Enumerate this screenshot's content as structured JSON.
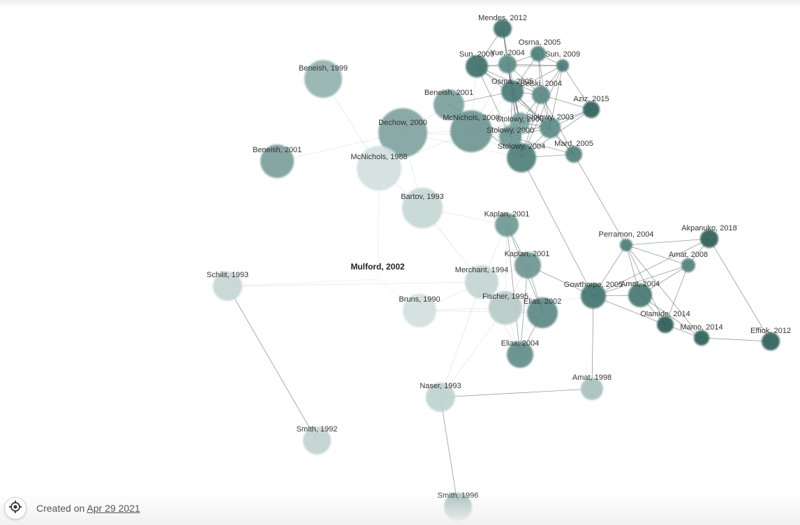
{
  "graph": {
    "origin_label": "Mulford, 2002",
    "nodes": [
      {
        "id": "mendes2012",
        "label": "Mendes, 2012",
        "shade": "#3e6e69"
      },
      {
        "id": "osrna2005",
        "label": "Osrna, 2005",
        "shade": "#4d7d78"
      },
      {
        "id": "sun2009a",
        "label": "Sun, 2009",
        "shade": "#3f706b"
      },
      {
        "id": "yue2004",
        "label": "Yue, 2004",
        "shade": "#5a8a86"
      },
      {
        "id": "sun2009b",
        "label": "Sun, 2009",
        "shade": "#4a7a76"
      },
      {
        "id": "osma2005",
        "label": "Osma, 2005",
        "shade": "#4a7b76"
      },
      {
        "id": "belski2004",
        "label": "Belski, 2004",
        "shade": "#5b8985"
      },
      {
        "id": "aziz2015",
        "label": "Aziz, 2015",
        "shade": "#2f5f5a"
      },
      {
        "id": "beneish2001a",
        "label": "Beneish, 2001",
        "shade": "#79a09c"
      },
      {
        "id": "mcnichols2000",
        "label": "McNichols, 2000",
        "shade": "#6f9692"
      },
      {
        "id": "stolowy2000a",
        "label": "Stolowy, 2000",
        "shade": "#7aa29e"
      },
      {
        "id": "stolowy2003",
        "label": "Stolowy, 2003",
        "shade": "#5b8b86"
      },
      {
        "id": "stolowy2000b",
        "label": "Stolowy, 2000",
        "shade": "#6b9591"
      },
      {
        "id": "stolowy2004",
        "label": "Stolowy, 2004",
        "shade": "#4e7f7a"
      },
      {
        "id": "mard2005",
        "label": "Mard, 2005",
        "shade": "#507f7b"
      },
      {
        "id": "dechow2000",
        "label": "Dechow, 2000",
        "shade": "#80a2a0"
      },
      {
        "id": "beneish1999",
        "label": "Beneish, 1999",
        "shade": "#93b2af"
      },
      {
        "id": "beneish2001b",
        "label": "Beneish, 2001",
        "shade": "#7b9e9b"
      },
      {
        "id": "mcnichols1988",
        "label": "McNichols, 1988",
        "shade": "#d3e0de"
      },
      {
        "id": "bartov1993",
        "label": "Bartov, 1993",
        "shade": "#c6d7d5"
      },
      {
        "id": "kaplan2001a",
        "label": "Kaplan, 2001",
        "shade": "#6f9894"
      },
      {
        "id": "kaplan2001b",
        "label": "Kaplan, 2001",
        "shade": "#6c9591"
      },
      {
        "id": "merchant1994",
        "label": "Merchant, 1994",
        "shade": "#c3d5d3"
      },
      {
        "id": "fischer1995",
        "label": "Fischer, 1995",
        "shade": "#b6cbc8"
      },
      {
        "id": "elias2002",
        "label": "Elias, 2002",
        "shade": "#5b8985"
      },
      {
        "id": "elias2004",
        "label": "Elias, 2004",
        "shade": "#5f8d89"
      },
      {
        "id": "bruns1990",
        "label": "Bruns, 1990",
        "shade": "#d3e0de"
      },
      {
        "id": "schilit1993",
        "label": "Schilit, 1993",
        "shade": "#c5d6d4"
      },
      {
        "id": "naser1993",
        "label": "Naser, 1993",
        "shade": "#bfd2cf"
      },
      {
        "id": "smith1992",
        "label": "Smith, 1992",
        "shade": "#c0d3d0"
      },
      {
        "id": "smith1996",
        "label": "Smith, 1996",
        "shade": "#a3bdba"
      },
      {
        "id": "amat1998",
        "label": "Amat, 1998",
        "shade": "#a8c0bd"
      },
      {
        "id": "perramon2004",
        "label": "Perramon, 2004",
        "shade": "#4e7e7a"
      },
      {
        "id": "akpanuko2018",
        "label": "Akpanuko, 2018",
        "shade": "#2e5d58"
      },
      {
        "id": "amat2008",
        "label": "Amat, 2008",
        "shade": "#527f7b"
      },
      {
        "id": "gowthorpe2005",
        "label": "Gowthorpe, 2005",
        "shade": "#437470"
      },
      {
        "id": "amat2004",
        "label": "Amat, 2004",
        "shade": "#457672"
      },
      {
        "id": "olamide2014",
        "label": "Olamide, 2014",
        "shade": "#2c5c57"
      },
      {
        "id": "mamo2014",
        "label": "Mamo, 2014",
        "shade": "#2e5e59"
      },
      {
        "id": "effiok2012",
        "label": "Effiok, 2012",
        "shade": "#2f5f5a"
      }
    ],
    "edges": [
      [
        "mendes2012",
        "sun2009a"
      ],
      [
        "mendes2012",
        "yue2004"
      ],
      [
        "mendes2012",
        "osma2005"
      ],
      [
        "mendes2012",
        "stolowy2000a"
      ],
      [
        "osrna2005",
        "yue2004"
      ],
      [
        "osrna2005",
        "sun2009b"
      ],
      [
        "osrna2005",
        "belski2004"
      ],
      [
        "osrna2005",
        "stolowy2003"
      ],
      [
        "osrna2005",
        "osma2005"
      ],
      [
        "sun2009a",
        "yue2004"
      ],
      [
        "sun2009a",
        "sun2009b"
      ],
      [
        "sun2009a",
        "osma2005"
      ],
      [
        "sun2009a",
        "belski2004"
      ],
      [
        "sun2009a",
        "mcnichols2000"
      ],
      [
        "sun2009a",
        "stolowy2000b"
      ],
      [
        "sun2009a",
        "stolowy2003"
      ],
      [
        "yue2004",
        "sun2009b"
      ],
      [
        "yue2004",
        "osma2005"
      ],
      [
        "yue2004",
        "stolowy2004"
      ],
      [
        "yue2004",
        "belski2004"
      ],
      [
        "yue2004",
        "stolowy2000a"
      ],
      [
        "yue2004",
        "mcnichols2000"
      ],
      [
        "sun2009b",
        "osma2005"
      ],
      [
        "sun2009b",
        "belski2004"
      ],
      [
        "sun2009b",
        "stolowy2003"
      ],
      [
        "sun2009b",
        "aziz2015"
      ],
      [
        "sun2009b",
        "stolowy2004"
      ],
      [
        "osma2005",
        "belski2004"
      ],
      [
        "osma2005",
        "stolowy2000a"
      ],
      [
        "osma2005",
        "stolowy2000b"
      ],
      [
        "osma2005",
        "stolowy2004"
      ],
      [
        "osma2005",
        "stolowy2003"
      ],
      [
        "osma2005",
        "mcnichols2000"
      ],
      [
        "osma2005",
        "beneish2001a"
      ],
      [
        "osma2005",
        "mard2005"
      ],
      [
        "belski2004",
        "stolowy2003"
      ],
      [
        "belski2004",
        "stolowy2000a"
      ],
      [
        "belski2004",
        "stolowy2004"
      ],
      [
        "belski2004",
        "aziz2015"
      ],
      [
        "belski2004",
        "mard2005"
      ],
      [
        "belski2004",
        "mcnichols2000"
      ],
      [
        "aziz2015",
        "stolowy2003"
      ],
      [
        "aziz2015",
        "stolowy2000b"
      ],
      [
        "aziz2015",
        "stolowy2004"
      ],
      [
        "aziz2015",
        "mcnichols2000"
      ],
      [
        "beneish2001a",
        "mcnichols2000"
      ],
      [
        "beneish2001a",
        "stolowy2004"
      ],
      [
        "beneish2001a",
        "dechow2000"
      ],
      [
        "beneish2001a",
        "stolowy2000b"
      ],
      [
        "mcnichols2000",
        "stolowy2000a"
      ],
      [
        "mcnichols2000",
        "stolowy2000b"
      ],
      [
        "mcnichols2000",
        "stolowy2004"
      ],
      [
        "mcnichols2000",
        "dechow2000"
      ],
      [
        "mcnichols2000",
        "stolowy2003"
      ],
      [
        "mcnichols2000",
        "mcnichols1988"
      ],
      [
        "stolowy2000a",
        "stolowy2003"
      ],
      [
        "stolowy2000a",
        "stolowy2000b"
      ],
      [
        "stolowy2000a",
        "stolowy2004"
      ],
      [
        "stolowy2003",
        "stolowy2000b"
      ],
      [
        "stolowy2003",
        "stolowy2004"
      ],
      [
        "stolowy2003",
        "mard2005"
      ],
      [
        "stolowy2000b",
        "stolowy2004"
      ],
      [
        "stolowy2000b",
        "dechow2000"
      ],
      [
        "stolowy2000b",
        "mard2005"
      ],
      [
        "stolowy2004",
        "mard2005"
      ],
      [
        "stolowy2004",
        "dechow2000"
      ],
      [
        "dechow2000",
        "mcnichols1988"
      ],
      [
        "dechow2000",
        "bartov1993"
      ],
      [
        "dechow2000",
        "beneish2001b"
      ],
      [
        "mcnichols1988",
        "bartov1993"
      ],
      [
        "mcnichols1988",
        "beneish1999"
      ],
      [
        "bartov1993",
        "kaplan2001a"
      ],
      [
        "bartov1993",
        "merchant1994"
      ],
      [
        "kaplan2001a",
        "kaplan2001b"
      ],
      [
        "kaplan2001a",
        "merchant1994"
      ],
      [
        "kaplan2001a",
        "fischer1995"
      ],
      [
        "kaplan2001a",
        "elias2002"
      ],
      [
        "kaplan2001a",
        "elias2004"
      ],
      [
        "kaplan2001b",
        "merchant1994"
      ],
      [
        "kaplan2001b",
        "fischer1995"
      ],
      [
        "kaplan2001b",
        "elias2002"
      ],
      [
        "kaplan2001b",
        "elias2004"
      ],
      [
        "kaplan2001b",
        "gowthorpe2005"
      ],
      [
        "merchant1994",
        "fischer1995"
      ],
      [
        "merchant1994",
        "elias2002"
      ],
      [
        "merchant1994",
        "elias2004"
      ],
      [
        "merchant1994",
        "bruns1990"
      ],
      [
        "merchant1994",
        "naser1993"
      ],
      [
        "fischer1995",
        "elias2002"
      ],
      [
        "fischer1995",
        "elias2004"
      ],
      [
        "fischer1995",
        "bruns1990"
      ],
      [
        "fischer1995",
        "gowthorpe2005"
      ],
      [
        "elias2002",
        "elias2004"
      ],
      [
        "bruns1990",
        "elias2002"
      ],
      [
        "schilit1993",
        "merchant1994"
      ],
      [
        "schilit1993",
        "smith1992"
      ],
      [
        "naser1993",
        "amat1998"
      ],
      [
        "naser1993",
        "smith1996"
      ],
      [
        "naser1993",
        "fischer1995"
      ],
      [
        "amat1998",
        "gowthorpe2005"
      ],
      [
        "perramon2004",
        "gowthorpe2005"
      ],
      [
        "perramon2004",
        "amat2004"
      ],
      [
        "perramon2004",
        "olamide2014"
      ],
      [
        "perramon2004",
        "mamo2014"
      ],
      [
        "perramon2004",
        "amat2008"
      ],
      [
        "perramon2004",
        "akpanuko2018"
      ],
      [
        "gowthorpe2005",
        "amat2004"
      ],
      [
        "gowthorpe2005",
        "amat2008"
      ],
      [
        "gowthorpe2005",
        "olamide2014"
      ],
      [
        "gowthorpe2005",
        "akpanuko2018"
      ],
      [
        "amat2004",
        "amat2008"
      ],
      [
        "amat2004",
        "olamide2014"
      ],
      [
        "amat2004",
        "mamo2014"
      ],
      [
        "amat2008",
        "olamide2014"
      ],
      [
        "amat2008",
        "akpanuko2018"
      ],
      [
        "olamide2014",
        "mamo2014"
      ],
      [
        "mamo2014",
        "effiok2012"
      ],
      [
        "akpanuko2018",
        "effiok2012"
      ],
      [
        "mard2005",
        "perramon2004"
      ],
      [
        "stolowy2004",
        "gowthorpe2005"
      ]
    ]
  },
  "footer": {
    "created_prefix": "Created on",
    "created_date": "Apr 29 2021",
    "locate_icon": "target-icon"
  }
}
